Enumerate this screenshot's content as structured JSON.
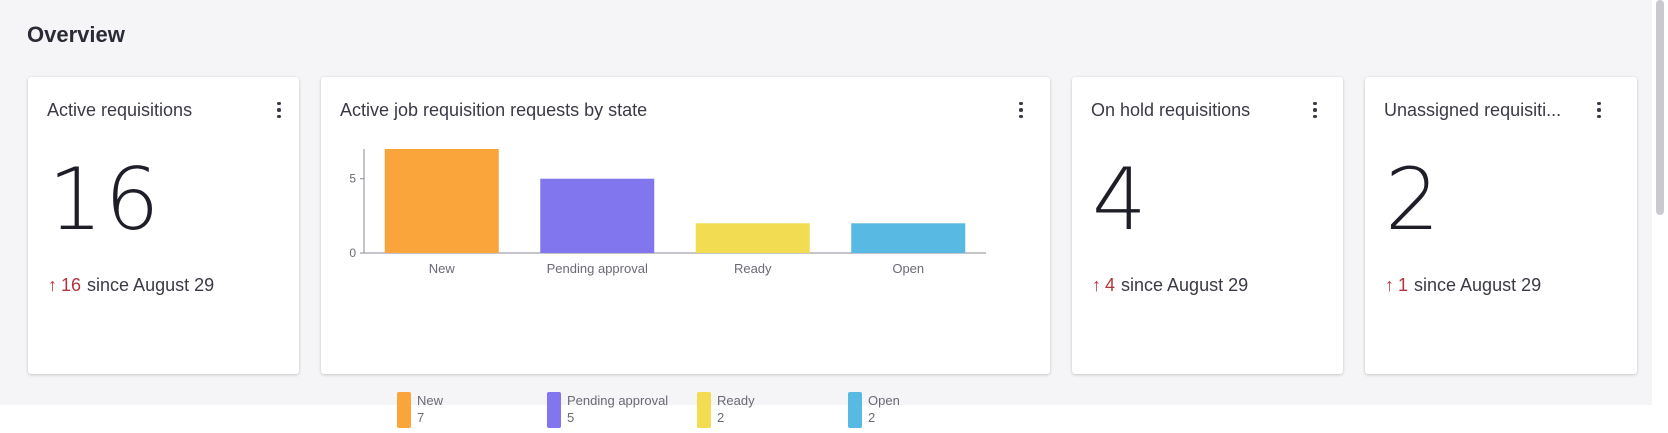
{
  "section_title": "Overview",
  "cards": {
    "active": {
      "title": "Active requisitions",
      "value": "16",
      "trend_arrow": "↑",
      "trend_delta": "16",
      "trend_text": "since August 29"
    },
    "on_hold": {
      "title": "On hold requisitions",
      "value": "4",
      "trend_arrow": "↑",
      "trend_delta": "4",
      "trend_text": "since August 29"
    },
    "unassigned": {
      "title": "Unassigned requisiti...",
      "value": "2",
      "trend_arrow": "↑",
      "trend_delta": "1",
      "trend_text": "since August 29"
    }
  },
  "chart_card": {
    "title": "Active job requisition requests by state"
  },
  "icons": {
    "menu": "more-vertical-icon",
    "trend": "arrow-up-icon"
  },
  "colors": {
    "trend": "#b5343c"
  },
  "chart_data": {
    "type": "bar",
    "title": "Active job requisition requests by state",
    "categories": [
      "New",
      "Pending approval",
      "Ready",
      "Open"
    ],
    "values": [
      7,
      5,
      2,
      2
    ],
    "colors": [
      "#f9a53c",
      "#8276ee",
      "#f1dc52",
      "#58b9e2"
    ],
    "yticks": [
      0,
      5
    ],
    "ylim": [
      0,
      7
    ],
    "xlabel": "",
    "ylabel": "",
    "grid": false,
    "legend": {
      "placement": "bottom",
      "items": [
        {
          "label": "New",
          "count": "7"
        },
        {
          "label": "Pending approval",
          "count": "5"
        },
        {
          "label": "Ready",
          "count": "2"
        },
        {
          "label": "Open",
          "count": "2"
        }
      ]
    }
  }
}
